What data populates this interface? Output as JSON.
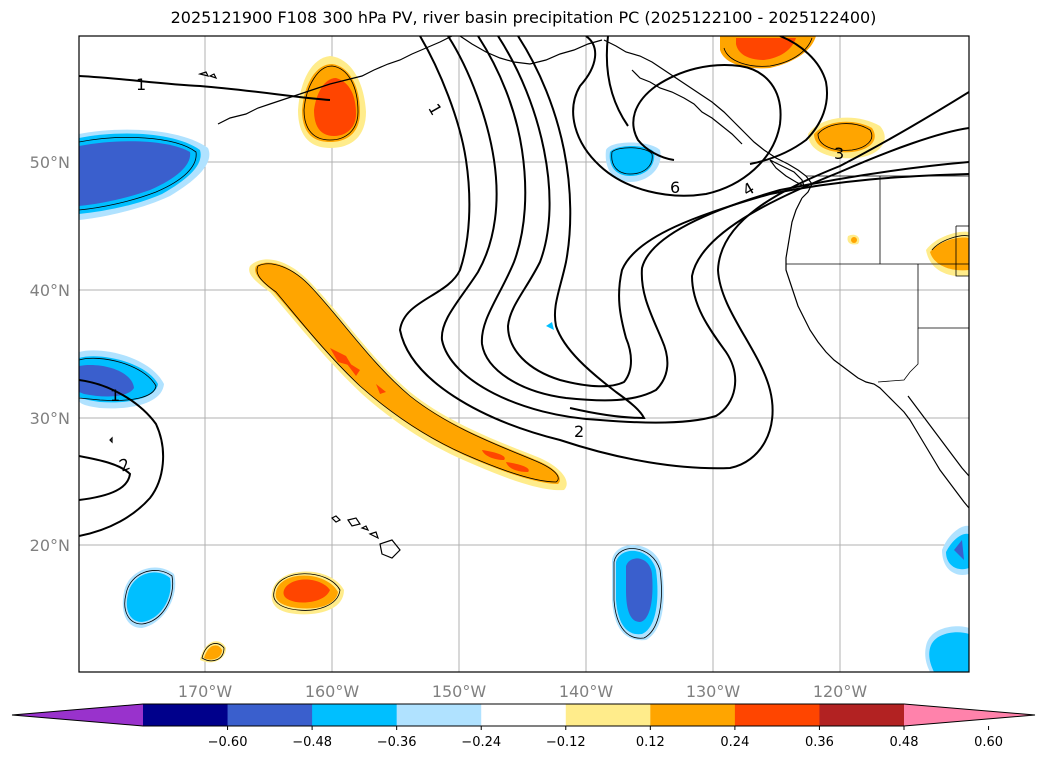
{
  "title": "2025121900 F108 300 hPa PV, river basin precipitation PC (2025122100 - 2025122400)",
  "map": {
    "lat_labels": [
      "50°N",
      "40°N",
      "30°N",
      "20°N"
    ],
    "lon_labels": [
      "170°W",
      "160°W",
      "150°W",
      "140°W",
      "130°W",
      "120°W"
    ],
    "pv_contour_labels": [
      "1",
      "1",
      "1",
      "2",
      "2",
      "3",
      "4",
      "6"
    ]
  },
  "colorbar": {
    "ticks": [
      "−0.60",
      "−0.48",
      "−0.36",
      "−0.24",
      "−0.12",
      "0.12",
      "0.24",
      "0.36",
      "0.48",
      "0.60"
    ],
    "colors": [
      "#9932CC",
      "#00008B",
      "#3A5FCD",
      "#00BFFF",
      "#B0E2FF",
      "#FFFFFF",
      "#FFEC8B",
      "#FFA500",
      "#FF4500",
      "#B22222",
      "#FF82AB"
    ]
  }
}
